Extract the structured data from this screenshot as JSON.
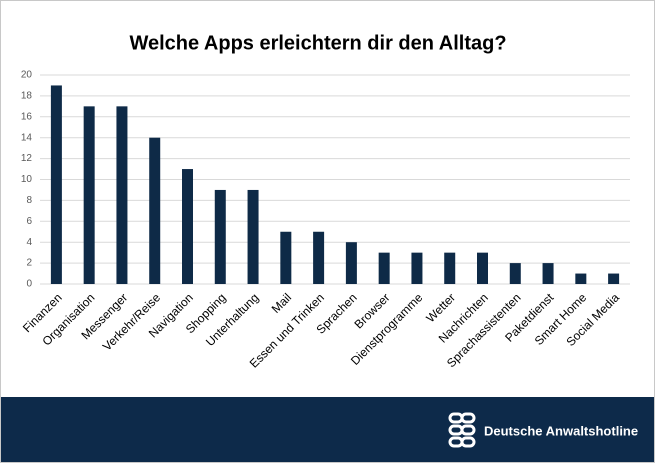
{
  "chart_data": {
    "type": "bar",
    "title": "Welche Apps erleichtern dir den Alltag?",
    "categories": [
      "Finanzen",
      "Organisation",
      "Messenger",
      "Verkehr/Reise",
      "Navigation",
      "Shopping",
      "Unterhaltung",
      "Mail",
      "Essen und Trinken",
      "Sprachen",
      "Browser",
      "Dienstprogramme",
      "Wetter",
      "Nachrichten",
      "Sprachassistenten",
      "Paketdienst",
      "Smart Home",
      "Social Media"
    ],
    "values": [
      19,
      17,
      17,
      14,
      11,
      9,
      9,
      5,
      5,
      4,
      3,
      3,
      3,
      3,
      2,
      2,
      1,
      1
    ],
    "color": "#0e2a47",
    "ylim": [
      0,
      20
    ],
    "yticks": [
      0,
      2,
      4,
      6,
      8,
      10,
      12,
      14,
      16,
      18,
      20
    ],
    "grid": true
  },
  "footer": {
    "brand": "Deutsche Anwaltshotline"
  }
}
